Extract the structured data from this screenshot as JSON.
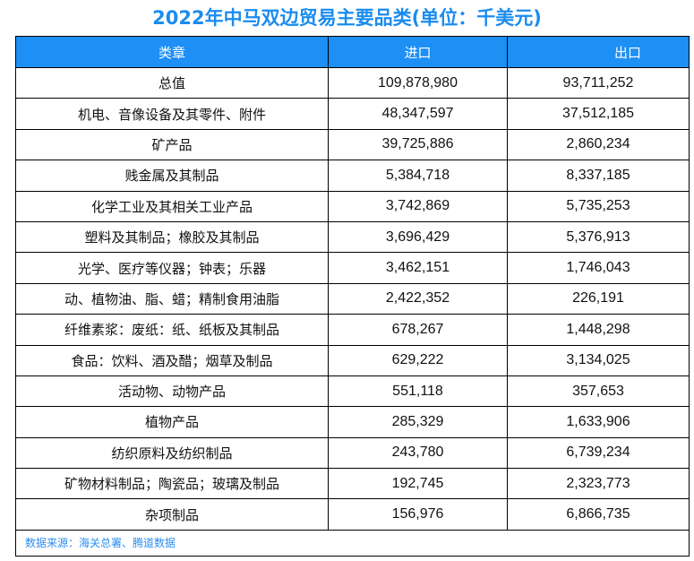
{
  "title": "2022年中马双边贸易主要品类(单位：千美元)",
  "table": {
    "headers": [
      "类章",
      "进口",
      "出口"
    ],
    "rows": [
      [
        "总值",
        "109,878,980",
        "93,711,252"
      ],
      [
        "机电、音像设备及其零件、附件",
        "48,347,597",
        "37,512,185"
      ],
      [
        "矿产品",
        "39,725,886",
        "2,860,234"
      ],
      [
        "贱金属及其制品",
        "5,384,718",
        "8,337,185"
      ],
      [
        "化学工业及其相关工业产品",
        "3,742,869",
        "5,735,253"
      ],
      [
        "塑料及其制品；橡胶及其制品",
        "3,696,429",
        "5,376,913"
      ],
      [
        "光学、医疗等仪器；钟表；乐器",
        "3,462,151",
        "1,746,043"
      ],
      [
        "动、植物油、脂、蜡；精制食用油脂",
        "2,422,352",
        "226,191"
      ],
      [
        "纤维素浆：废纸：纸、纸板及其制品",
        "678,267",
        "1,448,298"
      ],
      [
        "食品：饮料、酒及醋；烟草及制品",
        "629,222",
        "3,134,025"
      ],
      [
        "活动物、动物产品",
        "551,118",
        "357,653"
      ],
      [
        "植物产品",
        "285,329",
        "1,633,906"
      ],
      [
        "纺织原料及纺织制品",
        "243,780",
        "6,739,234"
      ],
      [
        "矿物材料制品；陶瓷品；玻璃及制品",
        "192,745",
        "2,323,773"
      ],
      [
        "杂项制品",
        "156,976",
        "6,866,735"
      ]
    ],
    "footnote": "数据来源：海关总署、腾道数据"
  },
  "colors": {
    "title": "#1a8cf0",
    "header_bg": "#1e8ff5",
    "footnote": "#2a8df0"
  }
}
